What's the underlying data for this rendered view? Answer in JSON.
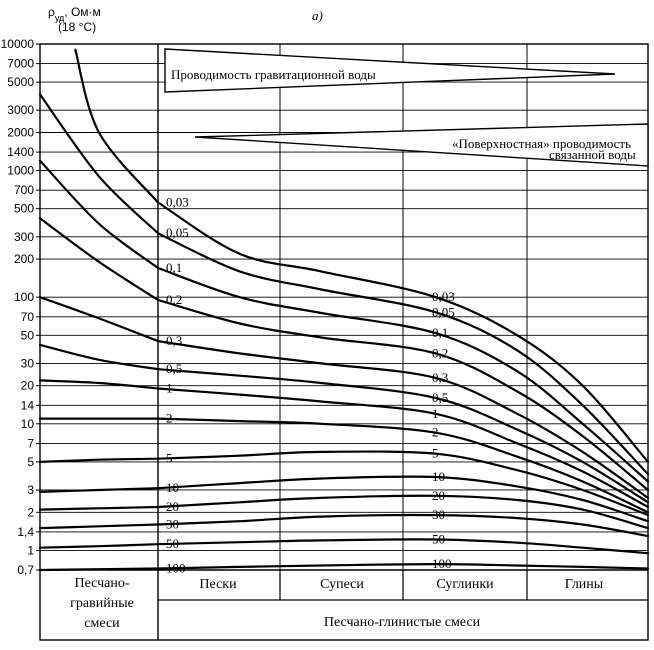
{
  "panel_label": "а)",
  "y_axis_label": {
    "symbol": "ρ",
    "subscript": "уд",
    "unit": ", Ом·м",
    "note": "(18 °С)"
  },
  "bands": {
    "gravity": "Проводимость гравитационной воды",
    "surface_line1": "«Поверхностная» проводимость",
    "surface_line2": "связанной воды"
  },
  "categories_bottom": {
    "left_block_line1": "Песчано-",
    "left_block_line2": "гравийные",
    "left_block_line3": "смеси",
    "sands": "Пески",
    "sandy_loams": "Супеси",
    "loams": "Суглинки",
    "clays": "Глины",
    "footer": "Песчано-глинистые смеси"
  },
  "chart_data": {
    "type": "line",
    "y_scale": "log",
    "ylim": [
      0.7,
      10000
    ],
    "y_ticks": [
      "10000",
      "7000",
      "5000",
      "3000",
      "2000",
      "1400",
      "1000",
      "700",
      "500",
      "300",
      "200",
      "100",
      "70",
      "50",
      "30",
      "20",
      "14",
      "10",
      "7",
      "5",
      "3",
      "2",
      "1,4",
      "1",
      "0,7"
    ],
    "y_tick_values": [
      10000,
      7000,
      5000,
      3000,
      2000,
      1400,
      1000,
      700,
      500,
      300,
      200,
      100,
      70,
      50,
      30,
      20,
      14,
      10,
      7,
      5,
      3,
      2,
      1.4,
      1,
      0.7
    ],
    "x_categories": [
      "Песчано-гравийные смеси",
      "Пески",
      "Супеси",
      "Суглинки",
      "Глины"
    ],
    "series": [
      {
        "name": "0,03",
        "left": [
          [
            0.3,
            9000
          ],
          [
            0.5,
            2000
          ],
          [
            1.0,
            560
          ]
        ],
        "right": [
          [
            1.0,
            560
          ],
          [
            1.5,
            220
          ],
          [
            2.0,
            160
          ],
          [
            2.7,
            100
          ],
          [
            3.2,
            50
          ],
          [
            3.6,
            20
          ],
          [
            4.0,
            5
          ]
        ]
      },
      {
        "name": "0,05",
        "left": [
          [
            0.0,
            4000
          ],
          [
            0.5,
            900
          ],
          [
            1.0,
            320
          ]
        ],
        "right": [
          [
            1.0,
            320
          ],
          [
            1.5,
            160
          ],
          [
            2.0,
            115
          ],
          [
            2.7,
            76
          ],
          [
            3.2,
            38
          ],
          [
            3.6,
            14
          ],
          [
            4.0,
            4
          ]
        ]
      },
      {
        "name": "0,1",
        "left": [
          [
            0.0,
            1200
          ],
          [
            0.5,
            380
          ],
          [
            1.0,
            170
          ]
        ],
        "right": [
          [
            1.0,
            170
          ],
          [
            1.5,
            100
          ],
          [
            2.0,
            75
          ],
          [
            2.7,
            52
          ],
          [
            3.2,
            26
          ],
          [
            3.6,
            10
          ],
          [
            4.0,
            3.5
          ]
        ]
      },
      {
        "name": "0,2",
        "left": [
          [
            0.0,
            420
          ],
          [
            0.5,
            190
          ],
          [
            1.0,
            95
          ]
        ],
        "right": [
          [
            1.0,
            95
          ],
          [
            1.5,
            62
          ],
          [
            2.0,
            48
          ],
          [
            2.7,
            36
          ],
          [
            3.2,
            18
          ],
          [
            3.6,
            8
          ],
          [
            4.0,
            3
          ]
        ]
      },
      {
        "name": "0,3",
        "left": [
          [
            0.0,
            100
          ],
          [
            0.5,
            68
          ],
          [
            1.0,
            45
          ]
        ],
        "right": [
          [
            1.0,
            45
          ],
          [
            1.5,
            36
          ],
          [
            2.0,
            30
          ],
          [
            2.7,
            23
          ],
          [
            3.2,
            12
          ],
          [
            3.6,
            6
          ],
          [
            4.0,
            2.6
          ]
        ]
      },
      {
        "name": "0,5",
        "left": [
          [
            0.0,
            42
          ],
          [
            0.5,
            32
          ],
          [
            1.0,
            27
          ]
        ],
        "right": [
          [
            1.0,
            27
          ],
          [
            1.5,
            24
          ],
          [
            2.0,
            21
          ],
          [
            2.7,
            16
          ],
          [
            3.2,
            9
          ],
          [
            3.6,
            5
          ],
          [
            4.0,
            2.4
          ]
        ]
      },
      {
        "name": "1",
        "left": [
          [
            0.0,
            22
          ],
          [
            0.5,
            21
          ],
          [
            1.0,
            19
          ]
        ],
        "right": [
          [
            1.0,
            19
          ],
          [
            1.5,
            17
          ],
          [
            2.0,
            15
          ],
          [
            2.7,
            12
          ],
          [
            3.2,
            7
          ],
          [
            3.6,
            4.2
          ],
          [
            4.0,
            2.2
          ]
        ]
      },
      {
        "name": "2",
        "left": [
          [
            0.0,
            11
          ],
          [
            0.5,
            11
          ],
          [
            1.0,
            11
          ]
        ],
        "right": [
          [
            1.0,
            11
          ],
          [
            1.5,
            10.5
          ],
          [
            2.0,
            10
          ],
          [
            2.7,
            8.5
          ],
          [
            3.2,
            5.5
          ],
          [
            3.6,
            3.5
          ],
          [
            4.0,
            2
          ]
        ]
      },
      {
        "name": "5",
        "left": [
          [
            0.0,
            5
          ],
          [
            0.5,
            5.2
          ],
          [
            1.0,
            5.3
          ]
        ],
        "right": [
          [
            1.0,
            5.3
          ],
          [
            1.5,
            5.6
          ],
          [
            2.0,
            6
          ],
          [
            2.7,
            5.8
          ],
          [
            3.2,
            4.3
          ],
          [
            3.6,
            3
          ],
          [
            4.0,
            1.9
          ]
        ]
      },
      {
        "name": "10",
        "left": [
          [
            0.0,
            2.9
          ],
          [
            0.5,
            3
          ],
          [
            1.0,
            3.1
          ]
        ],
        "right": [
          [
            1.0,
            3.1
          ],
          [
            1.5,
            3.4
          ],
          [
            2.0,
            3.7
          ],
          [
            2.7,
            3.8
          ],
          [
            3.2,
            3.2
          ],
          [
            3.6,
            2.5
          ],
          [
            4.0,
            1.7
          ]
        ]
      },
      {
        "name": "20",
        "left": [
          [
            0.0,
            2.1
          ],
          [
            0.5,
            2.15
          ],
          [
            1.0,
            2.2
          ]
        ],
        "right": [
          [
            1.0,
            2.2
          ],
          [
            1.5,
            2.4
          ],
          [
            2.0,
            2.6
          ],
          [
            2.7,
            2.7
          ],
          [
            3.2,
            2.5
          ],
          [
            3.6,
            2.1
          ],
          [
            4.0,
            1.5
          ]
        ]
      },
      {
        "name": "30",
        "left": [
          [
            0.0,
            1.5
          ],
          [
            0.5,
            1.55
          ],
          [
            1.0,
            1.6
          ]
        ],
        "right": [
          [
            1.0,
            1.6
          ],
          [
            1.5,
            1.7
          ],
          [
            2.0,
            1.85
          ],
          [
            2.7,
            1.9
          ],
          [
            3.2,
            1.8
          ],
          [
            3.6,
            1.6
          ],
          [
            4.0,
            1.3
          ]
        ]
      },
      {
        "name": "50",
        "left": [
          [
            0.0,
            1.05
          ],
          [
            0.5,
            1.08
          ],
          [
            1.0,
            1.12
          ]
        ],
        "right": [
          [
            1.0,
            1.12
          ],
          [
            1.5,
            1.16
          ],
          [
            2.0,
            1.2
          ],
          [
            2.7,
            1.22
          ],
          [
            3.2,
            1.15
          ],
          [
            3.6,
            1.05
          ],
          [
            4.0,
            0.95
          ]
        ]
      },
      {
        "name": "100",
        "left": [
          [
            0.0,
            0.7
          ],
          [
            0.5,
            0.71
          ],
          [
            1.0,
            0.72
          ]
        ],
        "right": [
          [
            1.0,
            0.72
          ],
          [
            1.5,
            0.74
          ],
          [
            2.0,
            0.76
          ],
          [
            2.7,
            0.78
          ],
          [
            3.2,
            0.76
          ],
          [
            3.6,
            0.74
          ],
          [
            4.0,
            0.72
          ]
        ]
      }
    ]
  }
}
